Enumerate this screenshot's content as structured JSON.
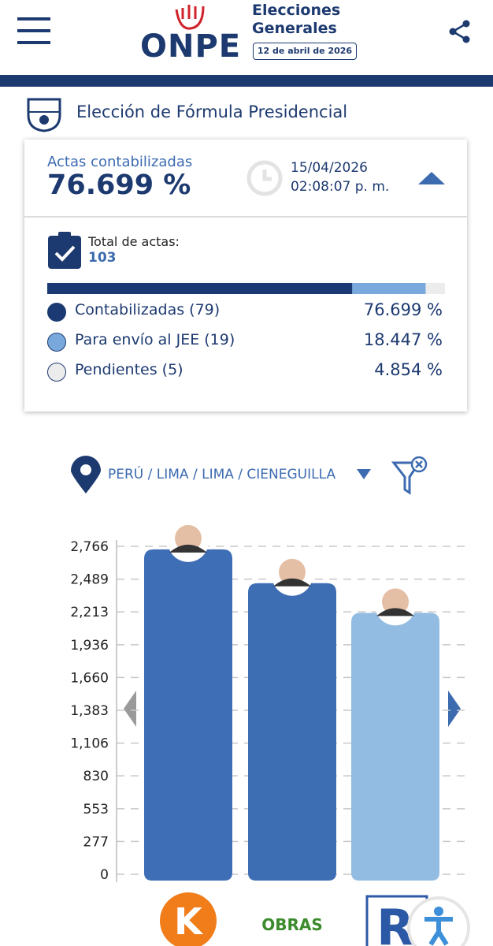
{
  "header": {
    "logo": "ONPE",
    "line1": "Elecciones",
    "line2": "Generales",
    "date": "12 de abril de 2026"
  },
  "section_title": "Elección de Fórmula Presidencial",
  "summary": {
    "label": "Actas contabilizadas",
    "percent": "76.699 %",
    "date": "15/04/2026",
    "time": "02:08:07 p. m.",
    "total_label": "Total de actas:",
    "total": "103",
    "items": [
      {
        "label": "Contabilizadas (79)",
        "value": 76.699,
        "value_label": "76.699 %",
        "color": "#1b3a73"
      },
      {
        "label": "Para envío al JEE (19)",
        "value": 18.447,
        "value_label": "18.447 %",
        "color": "#79a9dc"
      },
      {
        "label": "Pendientes (5)",
        "value": 4.854,
        "value_label": "4.854 %",
        "color": "#ececec"
      }
    ]
  },
  "location": "PERÚ / LIMA / LIMA / CIENEGUILLA",
  "chart_data": {
    "type": "bar",
    "categories": [
      "K",
      "OBRAS",
      "R"
    ],
    "values": [
      2740,
      2455,
      2205
    ],
    "colors": [
      "#3d6eb6",
      "#3d6eb4",
      "#93bce2"
    ],
    "ylim": [
      0,
      2766
    ],
    "yticks": [
      0,
      277,
      553,
      830,
      {
        "value": 1106,
        "label": "1,106"
      },
      {
        "value": 1383,
        "label": "1,383"
      },
      {
        "value": 1660,
        "label": "1,660"
      },
      {
        "value": 1936,
        "label": "1,936"
      },
      {
        "value": 2213,
        "label": "2,213"
      },
      {
        "value": 2489,
        "label": "2,489"
      },
      {
        "value": 2766,
        "label": "2,766"
      }
    ],
    "grid": true
  }
}
